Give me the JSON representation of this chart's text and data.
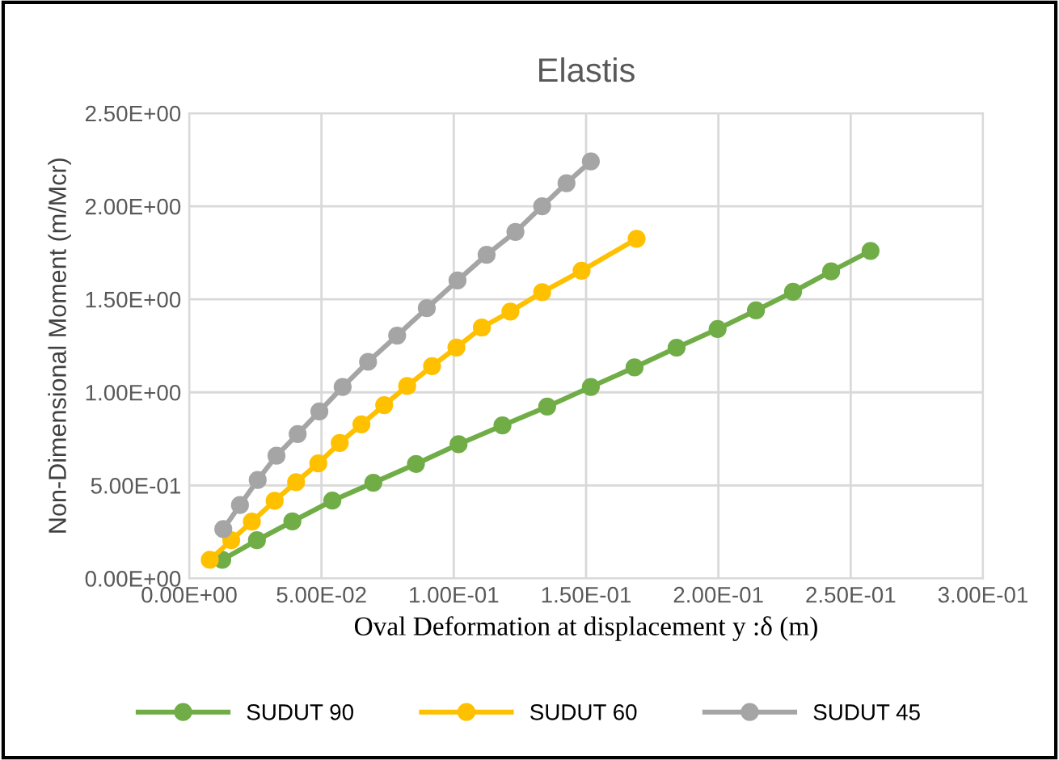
{
  "chart_data": {
    "type": "line",
    "title": "Elastis",
    "xlabel": "Oval Deformation at displacement y :δ (m)",
    "ylabel": "Non-Dimensional Moment (m/Mcr)",
    "xlim": [
      0,
      0.3
    ],
    "ylim": [
      0,
      2.5
    ],
    "xticks": [
      {
        "value": 0,
        "label": "0.00E+00"
      },
      {
        "value": 0.05,
        "label": "5.00E-02"
      },
      {
        "value": 0.1,
        "label": "1.00E-01"
      },
      {
        "value": 0.15,
        "label": "1.50E-01"
      },
      {
        "value": 0.2,
        "label": "2.00E-01"
      },
      {
        "value": 0.25,
        "label": "2.50E-01"
      },
      {
        "value": 0.3,
        "label": "3.00E-01"
      }
    ],
    "yticks": [
      {
        "value": 0,
        "label": "0.00E+00"
      },
      {
        "value": 0.5,
        "label": "5.00E-01"
      },
      {
        "value": 1.0,
        "label": "1.00E+00"
      },
      {
        "value": 1.5,
        "label": "1.50E+00"
      },
      {
        "value": 2.0,
        "label": "2.00E+00"
      },
      {
        "value": 2.5,
        "label": "2.50E+00"
      }
    ],
    "grid": true,
    "legend": "bottom",
    "marker": "circle",
    "line_style": "solid",
    "series": [
      {
        "name": "SUDUT 90",
        "color": "#70ad47",
        "x": [
          0.0125,
          0.0256,
          0.039,
          0.0541,
          0.0696,
          0.0857,
          0.1018,
          0.1184,
          0.1353,
          0.1518,
          0.1683,
          0.1842,
          0.1997,
          0.2142,
          0.2282,
          0.2426,
          0.2575
        ],
        "values": [
          0.1,
          0.205,
          0.306,
          0.418,
          0.514,
          0.615,
          0.721,
          0.822,
          0.923,
          1.029,
          1.134,
          1.24,
          1.34,
          1.44,
          1.54,
          1.65,
          1.76
        ]
      },
      {
        "name": "SUDUT 60",
        "color": "#ffc000",
        "x": [
          0.0078,
          0.0159,
          0.0237,
          0.0323,
          0.0404,
          0.0488,
          0.0569,
          0.0651,
          0.0737,
          0.0824,
          0.0918,
          0.101,
          0.1106,
          0.1214,
          0.1334,
          0.1483,
          0.1691
        ],
        "values": [
          0.1,
          0.205,
          0.305,
          0.417,
          0.517,
          0.618,
          0.728,
          0.828,
          0.931,
          1.034,
          1.141,
          1.241,
          1.348,
          1.434,
          1.538,
          1.653,
          1.825
        ]
      },
      {
        "name": "SUDUT 45",
        "color": "#a5a5a5",
        "x": [
          0.0129,
          0.0192,
          0.0259,
          0.033,
          0.041,
          0.0492,
          0.058,
          0.0676,
          0.0786,
          0.0898,
          0.1014,
          0.1124,
          0.1233,
          0.1334,
          0.1426,
          0.1518
        ],
        "values": [
          0.265,
          0.394,
          0.529,
          0.659,
          0.776,
          0.897,
          1.029,
          1.164,
          1.305,
          1.452,
          1.601,
          1.739,
          1.862,
          2.0,
          2.124,
          2.241
        ]
      }
    ]
  }
}
